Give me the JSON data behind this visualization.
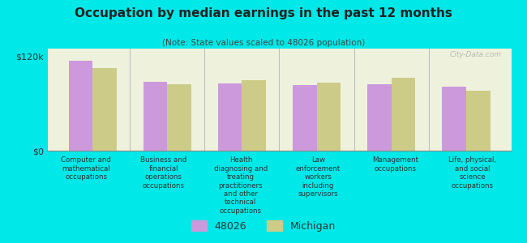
{
  "title": "Occupation by median earnings in the past 12 months",
  "subtitle": "(Note: State values scaled to 48026 population)",
  "background_color": "#00e8e8",
  "plot_bg_color": "#eef2dc",
  "categories": [
    "Computer and\nmathematical\noccupations",
    "Business and\nfinancial\noperations\noccupations",
    "Health\ndiagnosing and\ntreating\npractitioners\nand other\ntechnical\noccupations",
    "Law\nenforcement\nworkers\nincluding\nsupervisors",
    "Management\noccupations",
    "Life, physical,\nand social\nscience\noccupations"
  ],
  "values_48026": [
    115000,
    88000,
    86000,
    84000,
    85000,
    82000
  ],
  "values_michigan": [
    105000,
    85000,
    90000,
    87000,
    93000,
    76000
  ],
  "color_48026": "#cc99dd",
  "color_michigan": "#cccc88",
  "ylim": [
    0,
    130000
  ],
  "yticks": [
    0,
    120000
  ],
  "ytick_labels": [
    "$0",
    "$120k"
  ],
  "legend_labels": [
    "48026",
    "Michigan"
  ],
  "watermark": "City-Data.com"
}
